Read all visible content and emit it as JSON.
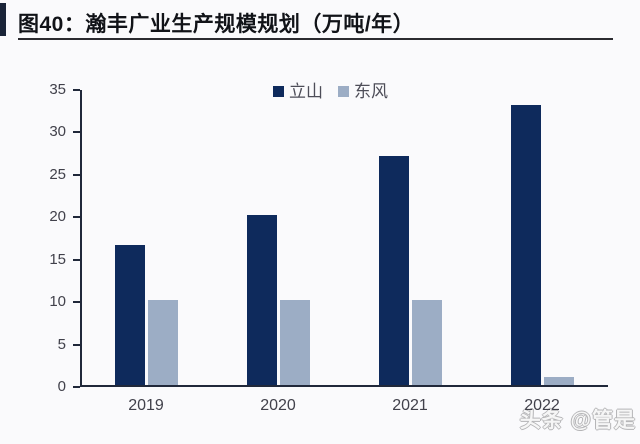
{
  "figure": {
    "title": "图40：瀚丰广业生产规模规划（万吨/年）"
  },
  "chart_data": {
    "type": "bar",
    "title": "图40：瀚丰广业生产规模规划（万吨/年）",
    "categories": [
      "2019",
      "2020",
      "2021",
      "2022"
    ],
    "series": [
      {
        "name": "立山",
        "color": "#0e2a5c",
        "values": [
          16.5,
          20,
          27,
          33
        ]
      },
      {
        "name": "东风",
        "color": "#9cadc5",
        "values": [
          10,
          10,
          10,
          1
        ]
      }
    ],
    "ylabel": "",
    "xlabel": "",
    "ylim": [
      0,
      35
    ],
    "yticks": [
      0,
      5,
      10,
      15,
      20,
      25,
      30,
      35
    ],
    "grid": false,
    "legend_position": "top-center"
  },
  "watermark": {
    "text": "头条 @管是"
  }
}
